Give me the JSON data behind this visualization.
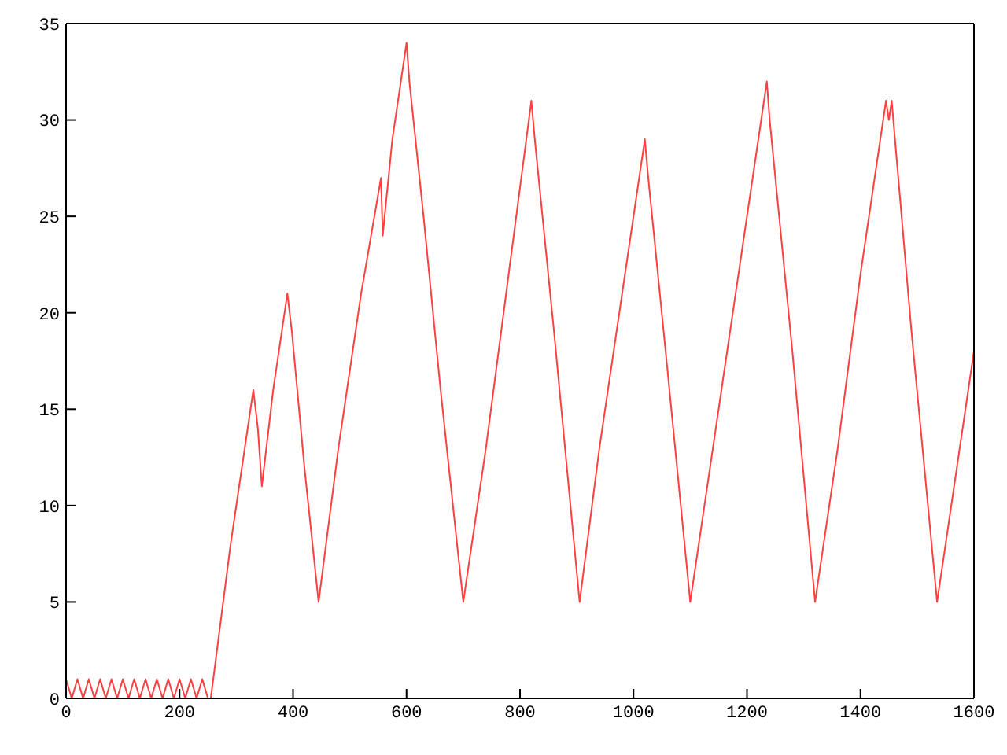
{
  "chart_data": {
    "type": "line",
    "x": [
      0,
      10,
      20,
      30,
      40,
      50,
      60,
      70,
      80,
      90,
      100,
      110,
      120,
      130,
      140,
      150,
      160,
      170,
      180,
      190,
      200,
      210,
      220,
      230,
      240,
      250,
      255,
      290,
      330,
      338,
      345,
      365,
      390,
      398,
      420,
      445,
      480,
      520,
      555,
      558,
      575,
      600,
      605,
      630,
      660,
      700,
      740,
      780,
      820,
      826,
      860,
      905,
      940,
      980,
      1020,
      1026,
      1060,
      1100,
      1140,
      1190,
      1235,
      1240,
      1280,
      1320,
      1360,
      1400,
      1445,
      1450,
      1455,
      1490,
      1535,
      1570,
      1600
    ],
    "series": [
      {
        "color": "#ff4040",
        "values": [
          1,
          0,
          1,
          0,
          1,
          0,
          1,
          0,
          1,
          0,
          1,
          0,
          1,
          0,
          1,
          0,
          1,
          0,
          1,
          0,
          1,
          0,
          1,
          0,
          1,
          0,
          0,
          8,
          16,
          14,
          11,
          16,
          21,
          19,
          12,
          5,
          13,
          21,
          27,
          24,
          29,
          34,
          32,
          25,
          16,
          5,
          13,
          22,
          31,
          29,
          19,
          5,
          13,
          21,
          29,
          27,
          17,
          5,
          13,
          23,
          32,
          30,
          18,
          5,
          13,
          22,
          31,
          30,
          31,
          19,
          5,
          12,
          18
        ]
      }
    ],
    "xlim": [
      0,
      1600
    ],
    "xticks": [
      0,
      200,
      400,
      600,
      800,
      1000,
      1200,
      1400,
      1600
    ],
    "ylim": [
      0,
      35
    ],
    "yticks": [
      0,
      5,
      10,
      15,
      20,
      25,
      30,
      35
    ],
    "grid": false,
    "legend": false,
    "marker": "none",
    "line_style": "solid"
  }
}
